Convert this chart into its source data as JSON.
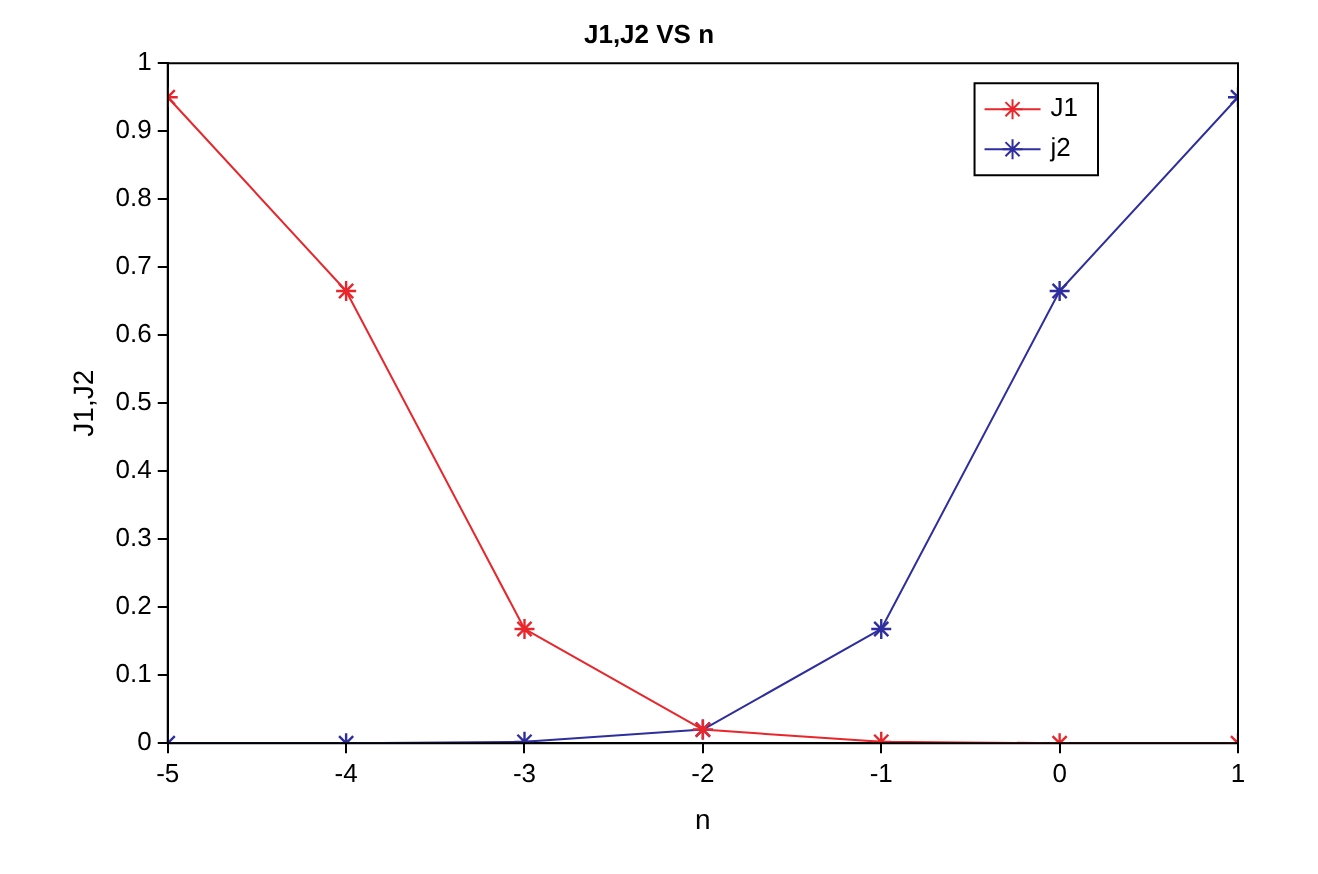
{
  "chart_data": {
    "type": "line",
    "title": "J1,J2 VS n",
    "xlabel": "n",
    "ylabel": "J1,J2",
    "x": [
      -5,
      -4,
      -3,
      -2,
      -1,
      0,
      1
    ],
    "series": [
      {
        "name": "J1",
        "color": "#e8262b",
        "values": [
          0.95,
          0.665,
          0.168,
          0.02,
          0.002,
          0,
          0
        ]
      },
      {
        "name": "j2",
        "color": "#2e2e9e",
        "values": [
          0,
          0,
          0.002,
          0.02,
          0.168,
          0.665,
          0.95
        ]
      }
    ],
    "xlim": [
      -5,
      1
    ],
    "xticks": [
      -5,
      -4,
      -3,
      -2,
      -1,
      0,
      1
    ],
    "ylim": [
      0,
      1
    ],
    "yticks": [
      0,
      0.1,
      0.2,
      0.3,
      0.4,
      0.5,
      0.6,
      0.7,
      0.8,
      0.9,
      1
    ],
    "grid": false,
    "legend": "top right",
    "marker": "cross",
    "line_style": "solid"
  }
}
